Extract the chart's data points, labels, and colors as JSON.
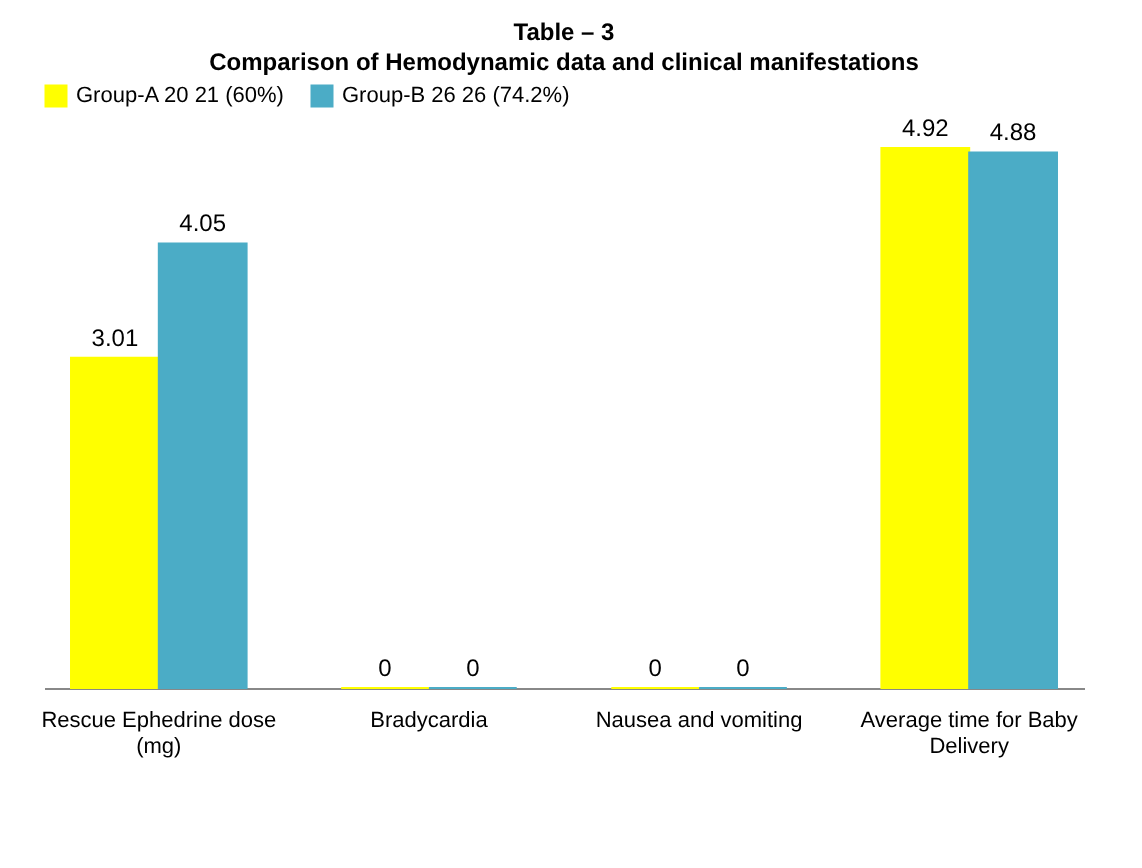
{
  "chart_data": {
    "type": "bar",
    "title": "Table – 3",
    "subtitle": "Comparison of Hemodynamic data and clinical  manifestations",
    "categories": [
      "Rescue Ephedrine dose (mg)",
      "Bradycardia",
      "Nausea and vomiting",
      "Average time for Baby Delivery"
    ],
    "series": [
      {
        "name": "Group-A 20 21 (60%)",
        "color": "#ffff00",
        "values": [
          3.01,
          0,
          0,
          4.92
        ]
      },
      {
        "name": "Group-B 26 26 (74.2%)",
        "color": "#4bacc6",
        "values": [
          4.05,
          0,
          0,
          4.88
        ]
      }
    ],
    "data_labels": true,
    "legend": "top",
    "tick_labels": "x"
  }
}
